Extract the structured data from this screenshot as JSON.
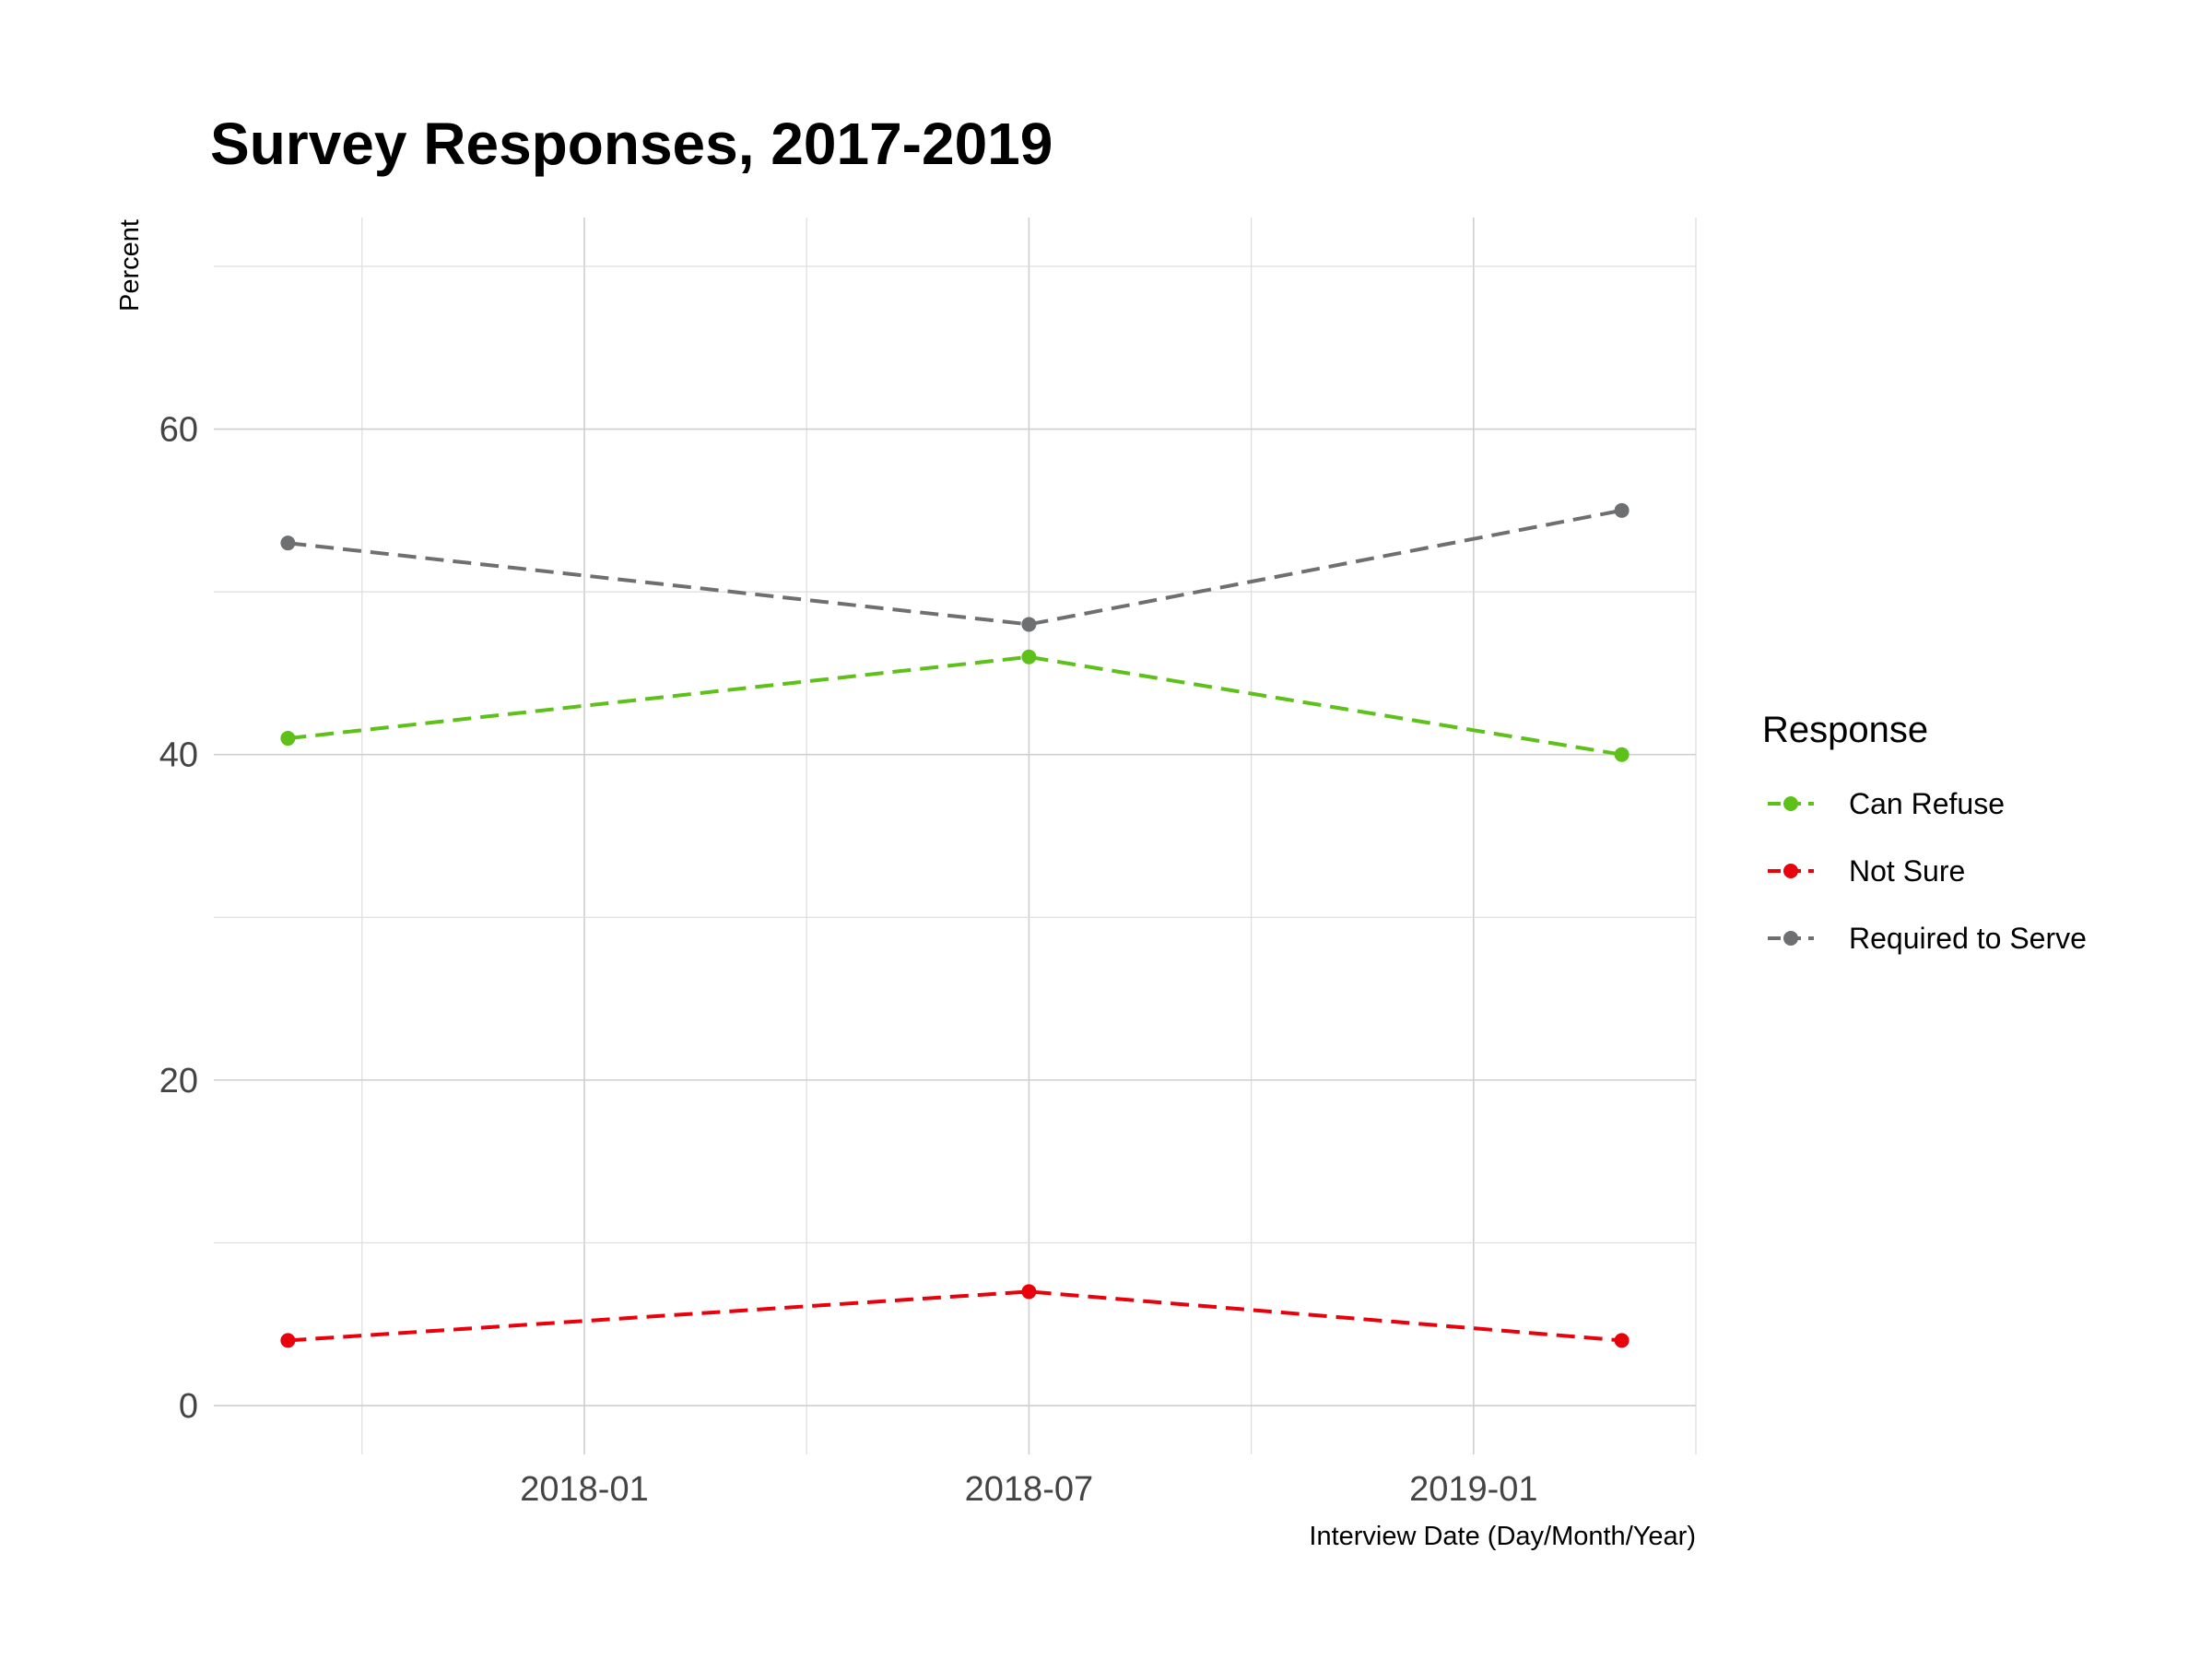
{
  "chart_data": {
    "type": "line",
    "title": "Survey Responses, 2017-2019",
    "xlabel": "Interview Date (Day/Month/Year)",
    "ylabel": "Percent",
    "x": [
      "2017-09",
      "2018-07",
      "2019-03"
    ],
    "x_tick_labels": [
      "2018-01",
      "2018-07",
      "2019-01"
    ],
    "xlim": [
      "2017-08",
      "2019-04"
    ],
    "y_ticks": [
      "0",
      "20",
      "40",
      "60"
    ],
    "ylim": [
      -3,
      73
    ],
    "grid": true,
    "legend_title": "Response",
    "legend_position": "right",
    "series": [
      {
        "name": "Can Refuse",
        "color": "#5ec11a",
        "values": [
          41,
          46,
          40
        ]
      },
      {
        "name": "Not Sure",
        "color": "#e8000b",
        "values": [
          4,
          7,
          4
        ]
      },
      {
        "name": "Required to Serve",
        "color": "#6d6f71",
        "values": [
          53,
          48,
          55
        ]
      }
    ]
  }
}
